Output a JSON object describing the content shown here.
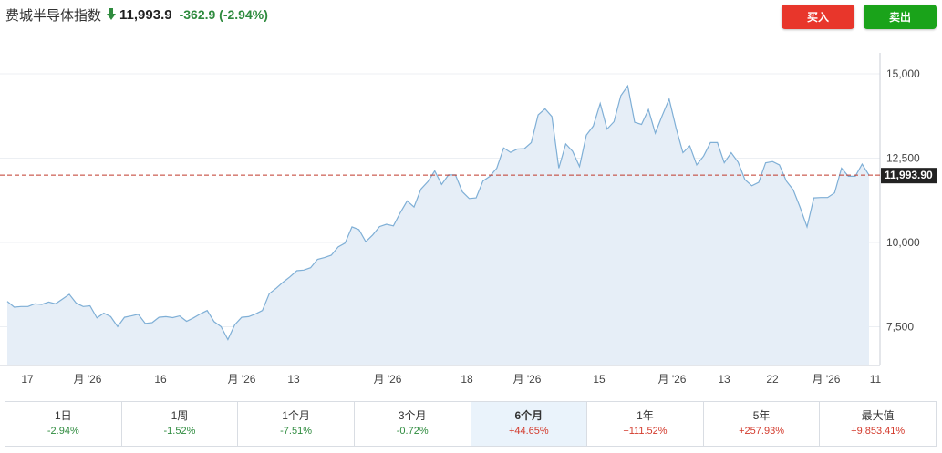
{
  "header": {
    "title": "费城半导体指数",
    "price": "11,993.9",
    "change": "-362.9",
    "change_pct": "(-2.94%)",
    "direction_icon": "arrow-down-icon",
    "colors": {
      "negative": "#2e8b3e",
      "positive": "#d33a2c"
    }
  },
  "actions": {
    "buy_label": "买入",
    "sell_label": "卖出",
    "buy_color": "#e8362b",
    "sell_color": "#1aa31a"
  },
  "chart_data": {
    "type": "area",
    "title": "",
    "xlabel": "",
    "ylabel": "",
    "ylim": [
      6350,
      15350
    ],
    "y_ticks": [
      7500,
      10000,
      12500,
      15000
    ],
    "y_tick_labels": [
      "7,500",
      "10,000",
      "12,500",
      "15,000"
    ],
    "x_tick_labels": [
      "17",
      "月 '26",
      "16",
      "月 '26",
      "13",
      "月 '26",
      "18",
      "月 '26",
      "15",
      "月 '26",
      "13",
      "22",
      "月 '26",
      "11"
    ],
    "grid": true,
    "line_color": "#7fafd6",
    "fill_color": "#e6eef7",
    "reference_line": {
      "value": 11993.9,
      "label": "11,993.90",
      "color": "#c0392b"
    },
    "series": [
      {
        "values": [
          8250,
          8080,
          8100,
          8100,
          8180,
          8160,
          8230,
          8180,
          8320,
          8460,
          8200,
          8100,
          8120,
          7760,
          7900,
          7800,
          7500,
          7780,
          7820,
          7870,
          7600,
          7620,
          7780,
          7800,
          7770,
          7820,
          7660,
          7760,
          7880,
          7980,
          7650,
          7500,
          7120,
          7560,
          7780,
          7800,
          7880,
          7980,
          8480,
          8640,
          8820,
          8980,
          9160,
          9180,
          9250,
          9500,
          9550,
          9620,
          9870,
          9980,
          10460,
          10380,
          10020,
          10220,
          10470,
          10540,
          10490,
          10880,
          11230,
          11050,
          11580,
          11800,
          12120,
          11720,
          12000,
          12000,
          11500,
          11300,
          11320,
          11820,
          11960,
          12200,
          12800,
          12670,
          12770,
          12780,
          12960,
          13780,
          13960,
          13730,
          12200,
          12920,
          12700,
          12250,
          13180,
          13450,
          14120,
          13360,
          13580,
          14350,
          14640,
          13560,
          13500,
          13940,
          13240,
          13760,
          14250,
          13400,
          12660,
          12860,
          12300,
          12560,
          12960,
          12960,
          12360,
          12660,
          12380,
          11860,
          11680,
          11780,
          12360,
          12400,
          12300,
          11820,
          11560,
          11040,
          10460,
          11320,
          11330,
          11330,
          11470,
          12200,
          11960,
          11960,
          12320,
          11994
        ]
      }
    ]
  },
  "ranges": [
    {
      "label": "1日",
      "value": "-2.94%",
      "trend": "neg",
      "active": false
    },
    {
      "label": "1周",
      "value": "-1.52%",
      "trend": "neg",
      "active": false
    },
    {
      "label": "1个月",
      "value": "-7.51%",
      "trend": "neg",
      "active": false
    },
    {
      "label": "3个月",
      "value": "-0.72%",
      "trend": "neg",
      "active": false
    },
    {
      "label": "6个月",
      "value": "+44.65%",
      "trend": "pos",
      "active": true
    },
    {
      "label": "1年",
      "value": "+111.52%",
      "trend": "pos",
      "active": false
    },
    {
      "label": "5年",
      "value": "+257.93%",
      "trend": "pos",
      "active": false
    },
    {
      "label": "最大值",
      "value": "+9,853.41%",
      "trend": "pos",
      "active": false
    }
  ]
}
